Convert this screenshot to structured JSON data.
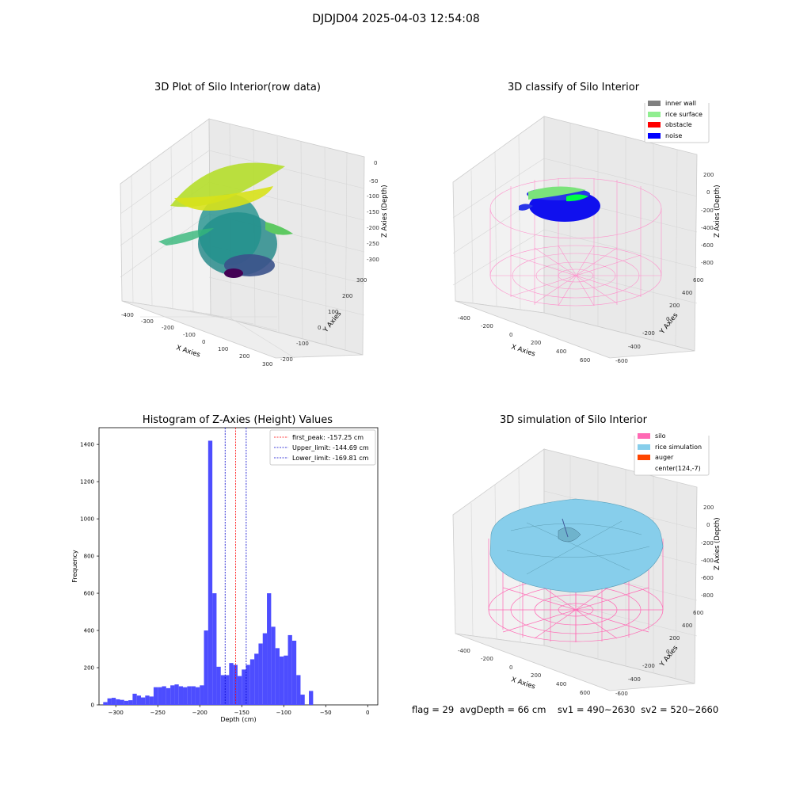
{
  "suptitle": "DJDJD04 2025-04-03 12:54:08",
  "panel1": {
    "title": "3D Plot of Silo Interior(row data)",
    "xlabel": "X Axies",
    "ylabel": "Y Axies",
    "zlabel": "Z Axies (Depth)",
    "xticks": [
      "-400",
      "-300",
      "-200",
      "-100",
      "0",
      "100",
      "200",
      "300"
    ],
    "yticks": [
      "-200",
      "-100",
      "0",
      "100",
      "200",
      "300"
    ],
    "zticks": [
      "0",
      "-50",
      "-100",
      "-150",
      "-200",
      "-250",
      "-300"
    ]
  },
  "panel2": {
    "title": "3D classify of Silo Interior",
    "xlabel": "X Axies",
    "ylabel": "Y Axies",
    "zlabel": "Z Axies (Depth)",
    "xticks": [
      "-400",
      "-200",
      "0",
      "200",
      "400",
      "600"
    ],
    "yticks": [
      "-600",
      "-400",
      "-200",
      "0",
      "200",
      "400",
      "600"
    ],
    "zticks": [
      "200",
      "0",
      "-200",
      "-400",
      "-600",
      "-800"
    ],
    "legend": [
      {
        "label": "inner wall",
        "color": "#808080"
      },
      {
        "label": "rice surface",
        "color": "#90ee90"
      },
      {
        "label": "obstacle",
        "color": "#ff0000"
      },
      {
        "label": "noise",
        "color": "#0000ff"
      }
    ]
  },
  "panel4": {
    "title": "3D simulation of Silo Interior",
    "xlabel": "X Axies",
    "ylabel": "Y Axies",
    "zlabel": "Z Axies (Depth)",
    "xticks": [
      "-400",
      "-200",
      "0",
      "200",
      "400",
      "600"
    ],
    "yticks": [
      "-600",
      "-400",
      "-200",
      "0",
      "200",
      "400",
      "600"
    ],
    "zticks": [
      "200",
      "0",
      "-200",
      "-400",
      "-600",
      "-800"
    ],
    "legend": [
      {
        "label": "silo",
        "color": "#ff69b4"
      },
      {
        "label": "rice simulation",
        "color": "#87ceeb"
      },
      {
        "label": "auger",
        "color": "#ff4500"
      },
      {
        "label": "center(124,-7)",
        "color": "#ffffff"
      }
    ]
  },
  "footer": "flag = 29  avgDepth = 66 cm    sv1 = 490~2630  sv2 = 520~2660",
  "chart_data": [
    {
      "type": "scatter",
      "title": "3D Plot of Silo Interior(row data)",
      "xlabel": "X Axies",
      "ylabel": "Y Axies",
      "zlabel": "Z Axies (Depth)",
      "xlim": [
        -400,
        300
      ],
      "ylim": [
        -200,
        300
      ],
      "zlim": [
        -320,
        0
      ]
    },
    {
      "type": "scatter",
      "title": "3D classify of Silo Interior",
      "xlabel": "X Axies",
      "ylabel": "Y Axies",
      "zlabel": "Z Axies (Depth)",
      "xlim": [
        -400,
        600
      ],
      "ylim": [
        -600,
        600
      ],
      "zlim": [
        -800,
        200
      ],
      "series": [
        {
          "name": "inner wall"
        },
        {
          "name": "rice surface"
        },
        {
          "name": "obstacle"
        },
        {
          "name": "noise"
        }
      ]
    },
    {
      "type": "bar",
      "title": "Histogram of Z-Axies (Height) Values",
      "xlabel": "Depth (cm)",
      "ylabel": "Frequency",
      "xlim": [
        -320,
        12
      ],
      "ylim": [
        0,
        1490
      ],
      "xticks": [
        -300,
        -250,
        -200,
        -150,
        -100,
        -50,
        0
      ],
      "yticks": [
        0,
        200,
        400,
        600,
        800,
        1000,
        1200,
        1400
      ],
      "bin_start": -315,
      "bin_width": 5,
      "values": [
        15,
        35,
        38,
        30,
        27,
        22,
        25,
        60,
        50,
        40,
        50,
        45,
        95,
        95,
        100,
        90,
        105,
        110,
        100,
        95,
        100,
        100,
        95,
        105,
        400,
        1420,
        600,
        205,
        160,
        160,
        225,
        215,
        155,
        190,
        215,
        245,
        275,
        330,
        385,
        600,
        420,
        305,
        260,
        265,
        375,
        345,
        160,
        55,
        0,
        75
      ],
      "color": "#4d4dff",
      "lines": [
        {
          "name": "first_peak: -157.25 cm",
          "x": -157.25,
          "color": "#ff0000"
        },
        {
          "name": "Upper_limit: -144.69 cm",
          "x": -144.69,
          "color": "#0000cc"
        },
        {
          "name": "Lower_limit: -169.81 cm",
          "x": -169.81,
          "color": "#0000cc"
        }
      ],
      "legend_position": "top-right"
    },
    {
      "type": "scatter",
      "title": "3D simulation of Silo Interior",
      "xlabel": "X Axies",
      "ylabel": "Y Axies",
      "zlabel": "Z Axies (Depth)",
      "xlim": [
        -400,
        600
      ],
      "ylim": [
        -600,
        600
      ],
      "zlim": [
        -800,
        200
      ],
      "series": [
        {
          "name": "silo"
        },
        {
          "name": "rice simulation"
        },
        {
          "name": "auger"
        },
        {
          "name": "center(124,-7)"
        }
      ]
    }
  ]
}
